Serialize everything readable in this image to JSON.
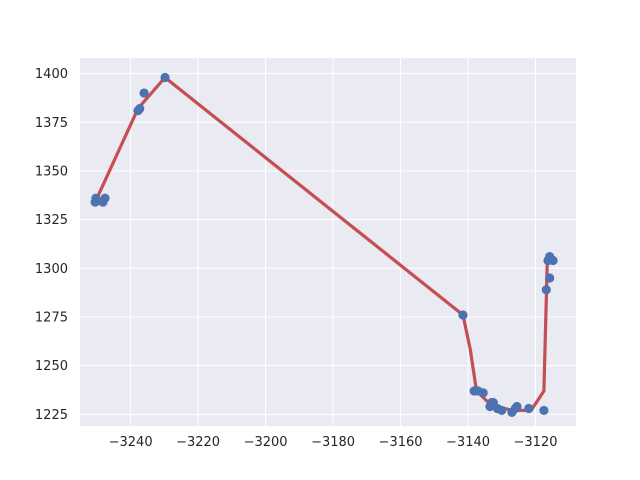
{
  "chart_data": {
    "type": "scatter",
    "title": "",
    "xlabel": "",
    "ylabel": "",
    "xlim": [
      -3255,
      -3108
    ],
    "ylim": [
      1219,
      1408
    ],
    "grid": true,
    "x_ticks": [
      -3240,
      -3220,
      -3200,
      -3180,
      -3160,
      -3140,
      -3120
    ],
    "x_tick_labels": [
      "−3240",
      "−3220",
      "−3200",
      "−3180",
      "−3160",
      "−3140",
      "−3120"
    ],
    "y_ticks": [
      1225,
      1250,
      1275,
      1300,
      1325,
      1350,
      1375,
      1400
    ],
    "y_tick_labels": [
      "1225",
      "1250",
      "1275",
      "1300",
      "1325",
      "1350",
      "1375",
      "1400"
    ],
    "colors": {
      "background": "#eaeaf2",
      "grid": "#ffffff",
      "points": "#4c72b0",
      "line": "#c44e52"
    },
    "series": [
      {
        "type": "scatter",
        "points": [
          {
            "x": -3250.5,
            "y": 1334
          },
          {
            "x": -3250.3,
            "y": 1336
          },
          {
            "x": -3248.2,
            "y": 1334
          },
          {
            "x": -3247.6,
            "y": 1336
          },
          {
            "x": -3237.8,
            "y": 1381
          },
          {
            "x": -3237.3,
            "y": 1382
          },
          {
            "x": -3236.0,
            "y": 1390
          },
          {
            "x": -3229.8,
            "y": 1398
          },
          {
            "x": -3141.5,
            "y": 1276
          },
          {
            "x": -3138.2,
            "y": 1237
          },
          {
            "x": -3137.0,
            "y": 1237
          },
          {
            "x": -3135.5,
            "y": 1236
          },
          {
            "x": -3133.5,
            "y": 1229
          },
          {
            "x": -3133.0,
            "y": 1231
          },
          {
            "x": -3132.5,
            "y": 1231
          },
          {
            "x": -3131.3,
            "y": 1228
          },
          {
            "x": -3130.0,
            "y": 1227
          },
          {
            "x": -3127.0,
            "y": 1226
          },
          {
            "x": -3126.0,
            "y": 1228
          },
          {
            "x": -3125.5,
            "y": 1229
          },
          {
            "x": -3122.0,
            "y": 1228
          },
          {
            "x": -3117.5,
            "y": 1227
          },
          {
            "x": -3116.8,
            "y": 1289
          },
          {
            "x": -3116.3,
            "y": 1304
          },
          {
            "x": -3115.8,
            "y": 1306
          },
          {
            "x": -3115.8,
            "y": 1295
          },
          {
            "x": -3114.8,
            "y": 1304
          }
        ]
      },
      {
        "type": "line",
        "points": [
          {
            "x": -3250.5,
            "y": 1334
          },
          {
            "x": -3237.8,
            "y": 1382
          },
          {
            "x": -3229.8,
            "y": 1398
          },
          {
            "x": -3141.5,
            "y": 1276
          },
          {
            "x": -3139.3,
            "y": 1258
          },
          {
            "x": -3137.5,
            "y": 1237
          },
          {
            "x": -3133.3,
            "y": 1230
          },
          {
            "x": -3127.0,
            "y": 1227
          },
          {
            "x": -3121.3,
            "y": 1227
          },
          {
            "x": -3117.5,
            "y": 1237
          },
          {
            "x": -3116.5,
            "y": 1304
          },
          {
            "x": -3115.5,
            "y": 1304
          }
        ]
      }
    ]
  }
}
